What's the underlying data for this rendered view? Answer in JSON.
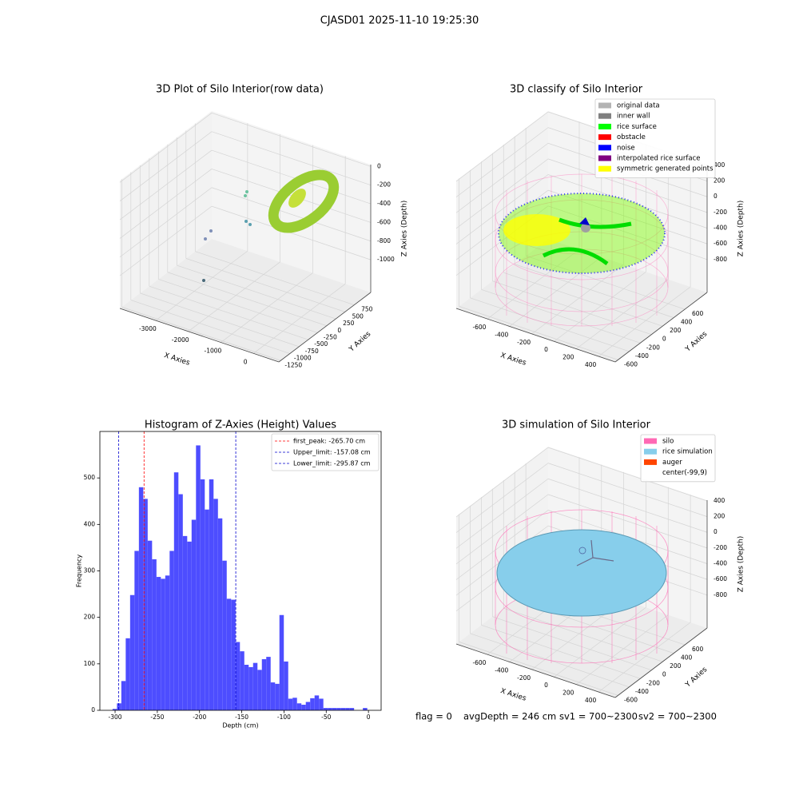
{
  "title": "CJASD01 2025-11-10 19:25:30",
  "status": [
    "flag = 0",
    "avgDepth = 246 cm",
    "sv1 = 700~2300",
    "sv2 = 700~2300"
  ],
  "chart_data": [
    {
      "type": "scatter3d",
      "title": "3D Plot of Silo Interior(row data)",
      "xlabel": "X Axies",
      "ylabel": "Y Axies",
      "zlabel": "Z Axies (Depth)",
      "xlim": [
        -4100,
        780
      ],
      "ylim": [
        -1300,
        1200
      ],
      "zlim": [
        -1350,
        20
      ],
      "xticks": [
        -3000,
        -2000,
        -1000,
        0
      ],
      "yticks": [
        -1250,
        -1000,
        -750,
        -500,
        -250,
        0,
        250,
        500,
        750
      ],
      "zticks": [
        -1000,
        -800,
        -600,
        -400,
        -200,
        0
      ]
    },
    {
      "type": "scatter3d",
      "title": "3D classify of Silo Interior",
      "xlabel": "X Axies",
      "ylabel": "Y Axies",
      "zlabel": "Z Axies (Depth)",
      "xlim": [
        -880,
        550
      ],
      "ylim": [
        -650,
        1000
      ],
      "zlim": [
        -1220,
        410
      ],
      "xticks": [
        -600,
        -400,
        -200,
        0,
        200,
        400
      ],
      "yticks": [
        -600,
        -400,
        -200,
        0,
        200,
        400,
        600
      ],
      "zticks": [
        -800,
        -600,
        -400,
        -200,
        0,
        200,
        400
      ],
      "legend": "upper right",
      "series": [
        {
          "name": "original data",
          "color": "#b3b3b3"
        },
        {
          "name": "inner wall",
          "color": "#808080"
        },
        {
          "name": "rice surface",
          "color": "#00ff00"
        },
        {
          "name": "obstacle",
          "color": "#ff0000"
        },
        {
          "name": "noise",
          "color": "#0000ff"
        },
        {
          "name": "interpolated rice surface",
          "color": "#800080"
        },
        {
          "name": "symmetric generated points",
          "color": "#ffff00"
        }
      ]
    },
    {
      "type": "histogram",
      "title": "Histogram of Z-Axies (Height) Values",
      "xlabel": "Depth (cm)",
      "ylabel": "Frequency",
      "color": "#4d4dff",
      "xlim": [
        -318,
        15
      ],
      "ylim": [
        0,
        600
      ],
      "xticks": [
        -300,
        -250,
        -200,
        -150,
        -100,
        -50,
        0
      ],
      "yticks": [
        0,
        100,
        200,
        300,
        400,
        500
      ],
      "bins": [
        -303,
        -297.8,
        -292.6,
        -287.4,
        -282.2,
        -277,
        -271.8,
        -266.6,
        -261.4,
        -256.2,
        -251,
        -245.8,
        -240.6,
        -235.4,
        -230.2,
        -225,
        -219.8,
        -214.6,
        -209.4,
        -204.2,
        -199,
        -193.8,
        -188.6,
        -183.4,
        -178.2,
        -173,
        -167.8,
        -162.6,
        -157.4,
        -152.2,
        -147,
        -141.8,
        -136.6,
        -131.4,
        -126.2,
        -121,
        -115.8,
        -110.6,
        -105.4,
        -100.2,
        -95,
        -89.8,
        -84.6,
        -79.4,
        -74.2,
        -69,
        -63.8,
        -58.6,
        -53.4,
        -48.2,
        -43,
        -37.8,
        -32.6,
        -27.4,
        -22.2,
        -17,
        -11.8,
        -6.6,
        -1.4
      ],
      "values": [
        3,
        15,
        63,
        155,
        248,
        343,
        480,
        455,
        365,
        325,
        287,
        283,
        290,
        343,
        512,
        465,
        375,
        363,
        410,
        570,
        497,
        432,
        497,
        455,
        413,
        322,
        240,
        238,
        147,
        127,
        98,
        93,
        102,
        87,
        110,
        115,
        60,
        57,
        205,
        105,
        25,
        27,
        15,
        12,
        18,
        26,
        32,
        25,
        5,
        5,
        5,
        5,
        5,
        5,
        5,
        0,
        0,
        5
      ],
      "legend": "upper right",
      "vlines": [
        {
          "name": "first_peak: -265.70 cm",
          "value": -265.7,
          "color": "#ff0000"
        },
        {
          "name": "Upper_limit: -157.08 cm",
          "value": -157.08,
          "color": "#0000cd"
        },
        {
          "name": "Lower_limit: -295.87 cm",
          "value": -295.87,
          "color": "#0000cd"
        }
      ]
    },
    {
      "type": "scatter3d",
      "title": "3D simulation of Silo Interior",
      "xlabel": "X Axies",
      "ylabel": "Y Axies",
      "zlabel": "Z Axies (Depth)",
      "xlim": [
        -880,
        550
      ],
      "ylim": [
        -650,
        1000
      ],
      "zlim": [
        -1220,
        410
      ],
      "xticks": [
        -600,
        -400,
        -200,
        0,
        200,
        400
      ],
      "yticks": [
        -600,
        -400,
        -200,
        0,
        200,
        400,
        600
      ],
      "zticks": [
        -800,
        -600,
        -400,
        -200,
        0,
        200,
        400
      ],
      "legend": "upper right",
      "series": [
        {
          "name": "silo",
          "color": "#ff69b4"
        },
        {
          "name": "rice simulation",
          "color": "#87ceeb"
        },
        {
          "name": "auger",
          "color": "#ff4500"
        },
        {
          "name": "center(-99,9)",
          "color": "#ffffff"
        }
      ]
    }
  ]
}
